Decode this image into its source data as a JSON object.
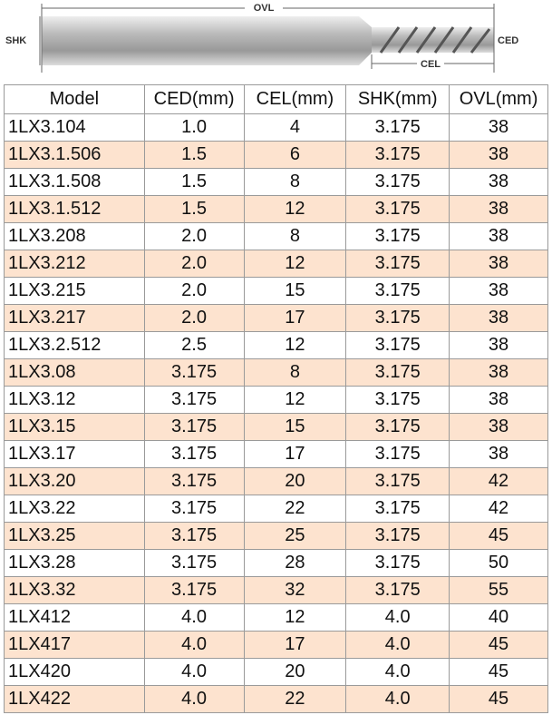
{
  "diagram": {
    "ovl": "OVL",
    "shk": "SHK",
    "ced": "CED",
    "cel": "CEL"
  },
  "table": {
    "header": [
      "Model",
      "CED(mm)",
      "CEL(mm)",
      "SHK(mm)",
      "OVL(mm)"
    ],
    "rows": [
      [
        "1LX3.104",
        "1.0",
        "4",
        "3.175",
        "38"
      ],
      [
        "1LX3.1.506",
        "1.5",
        "6",
        "3.175",
        "38"
      ],
      [
        "1LX3.1.508",
        "1.5",
        "8",
        "3.175",
        "38"
      ],
      [
        "1LX3.1.512",
        "1.5",
        "12",
        "3.175",
        "38"
      ],
      [
        "1LX3.208",
        "2.0",
        "8",
        "3.175",
        "38"
      ],
      [
        "1LX3.212",
        "2.0",
        "12",
        "3.175",
        "38"
      ],
      [
        "1LX3.215",
        "2.0",
        "15",
        "3.175",
        "38"
      ],
      [
        "1LX3.217",
        "2.0",
        "17",
        "3.175",
        "38"
      ],
      [
        "1LX3.2.512",
        "2.5",
        "12",
        "3.175",
        "38"
      ],
      [
        "1LX3.08",
        "3.175",
        "8",
        "3.175",
        "38"
      ],
      [
        "1LX3.12",
        "3.175",
        "12",
        "3.175",
        "38"
      ],
      [
        "1LX3.15",
        "3.175",
        "15",
        "3.175",
        "38"
      ],
      [
        "1LX3.17",
        "3.175",
        "17",
        "3.175",
        "38"
      ],
      [
        "1LX3.20",
        "3.175",
        "20",
        "3.175",
        "42"
      ],
      [
        "1LX3.22",
        "3.175",
        "22",
        "3.175",
        "42"
      ],
      [
        "1LX3.25",
        "3.175",
        "25",
        "3.175",
        "45"
      ],
      [
        "1LX3.28",
        "3.175",
        "28",
        "3.175",
        "50"
      ],
      [
        "1LX3.32",
        "3.175",
        "32",
        "3.175",
        "55"
      ],
      [
        "1LX412",
        "4.0",
        "12",
        "4.0",
        "40"
      ],
      [
        "1LX417",
        "4.0",
        "17",
        "4.0",
        "45"
      ],
      [
        "1LX420",
        "4.0",
        "20",
        "4.0",
        "45"
      ],
      [
        "1LX422",
        "4.0",
        "22",
        "4.0",
        "45"
      ]
    ]
  }
}
